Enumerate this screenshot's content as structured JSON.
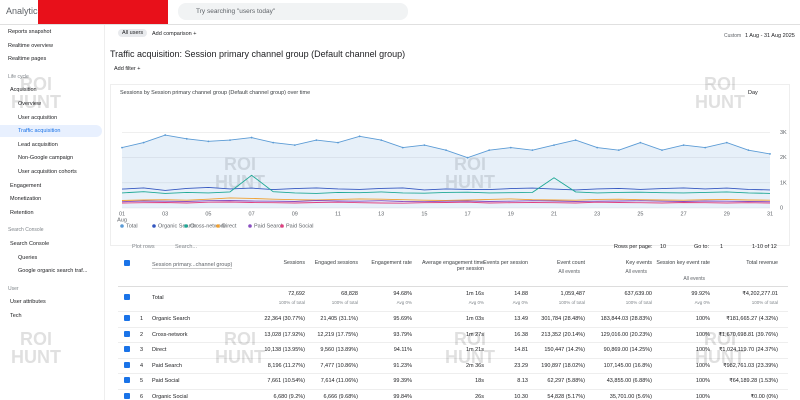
{
  "header": {
    "app": "Analytics",
    "search": "Try searching \"users today\"",
    "date_label": "Custom",
    "date_range": "1 Aug - 31 Aug 2025"
  },
  "comparison": {
    "chip": "All users",
    "add": "Add comparison +"
  },
  "report": {
    "title": "Traffic acquisition: Session primary channel group (Default channel group)",
    "add_filter": "Add filter +"
  },
  "sidebar": [
    {
      "kind": "item",
      "label": "Reports snapshot"
    },
    {
      "kind": "item",
      "label": "Realtime overview"
    },
    {
      "kind": "item",
      "label": "Realtime pages"
    },
    {
      "kind": "section",
      "label": "Life cycle"
    },
    {
      "kind": "group",
      "label": "Acquisition"
    },
    {
      "kind": "item",
      "label": "Overview"
    },
    {
      "kind": "item",
      "label": "User acquisition"
    },
    {
      "kind": "item",
      "label": "Traffic acquisition",
      "selected": true
    },
    {
      "kind": "item",
      "label": "Lead acquisition"
    },
    {
      "kind": "item",
      "label": "Non-Google campaign"
    },
    {
      "kind": "item",
      "label": "User acquisition cohorts"
    },
    {
      "kind": "group",
      "label": "Engagement"
    },
    {
      "kind": "group",
      "label": "Monetization"
    },
    {
      "kind": "group",
      "label": "Retention"
    },
    {
      "kind": "section",
      "label": "Search Console"
    },
    {
      "kind": "group",
      "label": "Search Console"
    },
    {
      "kind": "item",
      "label": "Queries"
    },
    {
      "kind": "item",
      "label": "Google organic search traf..."
    },
    {
      "kind": "section",
      "label": "User"
    },
    {
      "kind": "group",
      "label": "User attributes"
    },
    {
      "kind": "group",
      "label": "Tech"
    }
  ],
  "chart": {
    "type": "line",
    "title": "Sessions by Session primary channel group (Default channel group) over time",
    "granularity": "Day",
    "categories": [
      "01",
      null,
      "03",
      null,
      "05",
      null,
      "07",
      null,
      "09",
      null,
      "11",
      null,
      "13",
      null,
      "15",
      null,
      "17",
      null,
      "19",
      null,
      "21",
      null,
      "23",
      null,
      "25",
      null,
      "27",
      null,
      "29",
      null,
      "31"
    ],
    "first_sublabel": "Aug",
    "ylim": [
      0,
      3300
    ],
    "yticks": [
      0,
      {
        "value": 1000,
        "label": "1K"
      },
      {
        "value": 2000,
        "label": "2K"
      },
      {
        "value": 3000,
        "label": "3K"
      }
    ],
    "series": [
      {
        "name": "Total",
        "color": "#5b9bd5",
        "values": [
          2400,
          2600,
          2900,
          2750,
          2650,
          2700,
          2800,
          2600,
          2500,
          2700,
          2600,
          2850,
          2700,
          2400,
          2500,
          2300,
          2000,
          2300,
          2400,
          2300,
          2500,
          2700,
          2400,
          2300,
          2600,
          2300,
          2500,
          2400,
          2600,
          2300,
          2150
        ]
      },
      {
        "name": "Organic Search",
        "color": "#3457c0",
        "values": [
          750,
          800,
          700,
          780,
          820,
          760,
          790,
          730,
          770,
          800,
          760,
          740,
          780,
          800,
          720,
          760,
          740,
          730,
          770,
          790,
          750,
          720,
          760,
          780,
          740,
          770,
          800,
          760,
          790,
          740,
          720
        ]
      },
      {
        "name": "Cross-network",
        "color": "#1fa896",
        "values": [
          600,
          650,
          580,
          620,
          600,
          640,
          1300,
          650,
          600,
          580,
          620,
          610,
          640,
          600,
          590,
          620,
          630,
          600,
          610,
          620,
          1200,
          640,
          600,
          620,
          630,
          610,
          600,
          620,
          640,
          600,
          580
        ]
      },
      {
        "name": "Direct",
        "color": "#f0a030",
        "values": [
          300,
          320,
          330,
          310,
          350,
          400,
          380,
          350,
          330,
          320,
          340,
          360,
          350,
          330,
          310,
          300,
          320,
          340,
          360,
          330,
          320,
          310,
          340,
          350,
          330,
          320,
          310,
          330,
          340,
          320,
          310
        ]
      },
      {
        "name": "Paid Search",
        "color": "#8a4fc0",
        "values": [
          250,
          280,
          270,
          260,
          290,
          300,
          280,
          270,
          260,
          300,
          280,
          270,
          290,
          260,
          250,
          270,
          280,
          260,
          270,
          290,
          280,
          260,
          270,
          280,
          290,
          270,
          260,
          280,
          270,
          260,
          250
        ]
      },
      {
        "name": "Paid Social",
        "color": "#e04080",
        "values": [
          200,
          210,
          220,
          200,
          230,
          240,
          220,
          210,
          200,
          220,
          230,
          210,
          200,
          190,
          210,
          220,
          230,
          200,
          210,
          220,
          210,
          200,
          230,
          220,
          210,
          200,
          220,
          210,
          200,
          210,
          200
        ]
      }
    ]
  },
  "table": {
    "plot_rows": "Plot rows",
    "search": "Search...",
    "rows_per_page_label": "Rows per page:",
    "rows_per_page": "10",
    "go_to_label": "Go to:",
    "go_to": "1",
    "range": "1-10 of 12",
    "dimension": "Session primary...channel group)",
    "columns": [
      "Sessions",
      "Engaged sessions",
      "Engagement rate",
      "Average engagement time per session",
      "Events per session",
      "Event count",
      "Key events",
      "Session key event rate",
      "Total revenue"
    ],
    "column_filters": [
      null,
      null,
      null,
      null,
      null,
      "All events",
      "All events",
      "All events",
      null
    ],
    "total_label": "Total",
    "total": [
      "72,692",
      "68,828",
      "94.68%",
      "1m 16s",
      "14.88",
      "1,059,487",
      "637,639.00",
      "99.92%",
      "₹4,202,277.01"
    ],
    "total_sub": [
      "100% of total",
      "100% of total",
      "Avg 0%",
      "Avg 0%",
      "Avg 0%",
      "100% of total",
      "100% of total",
      "Avg 0%",
      "100% of total"
    ],
    "rows": [
      [
        "1",
        "Organic Search",
        "22,364 (30.77%)",
        "21,405 (31.1%)",
        "95.69%",
        "1m 03s",
        "13.49",
        "301,784 (28.48%)",
        "183,844.03 (28.83%)",
        "100%",
        "₹181,665.27 (4.32%)"
      ],
      [
        "2",
        "Cross-network",
        "13,028 (17.92%)",
        "12,219 (17.75%)",
        "93.79%",
        "1m 27s",
        "16.38",
        "213,352 (20.14%)",
        "129,016.00 (20.23%)",
        "100%",
        "₹1,670,698.81 (39.76%)"
      ],
      [
        "3",
        "Direct",
        "10,138 (13.95%)",
        "9,560 (13.89%)",
        "94.11%",
        "1m 21s",
        "14.81",
        "150,447 (14.2%)",
        "90,869.00 (14.25%)",
        "100%",
        "₹1,024,119.70 (24.37%)"
      ],
      [
        "4",
        "Paid Search",
        "8,196 (11.27%)",
        "7,477 (10.86%)",
        "91.23%",
        "2m 36s",
        "23.29",
        "190,897 (18.02%)",
        "107,145.00 (16.8%)",
        "100%",
        "₹982,761.03 (23.39%)"
      ],
      [
        "5",
        "Paid Social",
        "7,661 (10.54%)",
        "7,614 (11.06%)",
        "99.39%",
        "18s",
        "8.13",
        "62,297 (5.88%)",
        "43,855.00 (6.88%)",
        "100%",
        "₹64,189.28 (1.53%)"
      ],
      [
        "6",
        "Organic Social",
        "6,680 (9.2%)",
        "6,666 (9.68%)",
        "99.84%",
        "26s",
        "10.30",
        "54,828 (5.17%)",
        "35,701.00 (5.6%)",
        "100%",
        "₹0.00 (0%)"
      ]
    ]
  },
  "watermark": "ROI HUNT"
}
